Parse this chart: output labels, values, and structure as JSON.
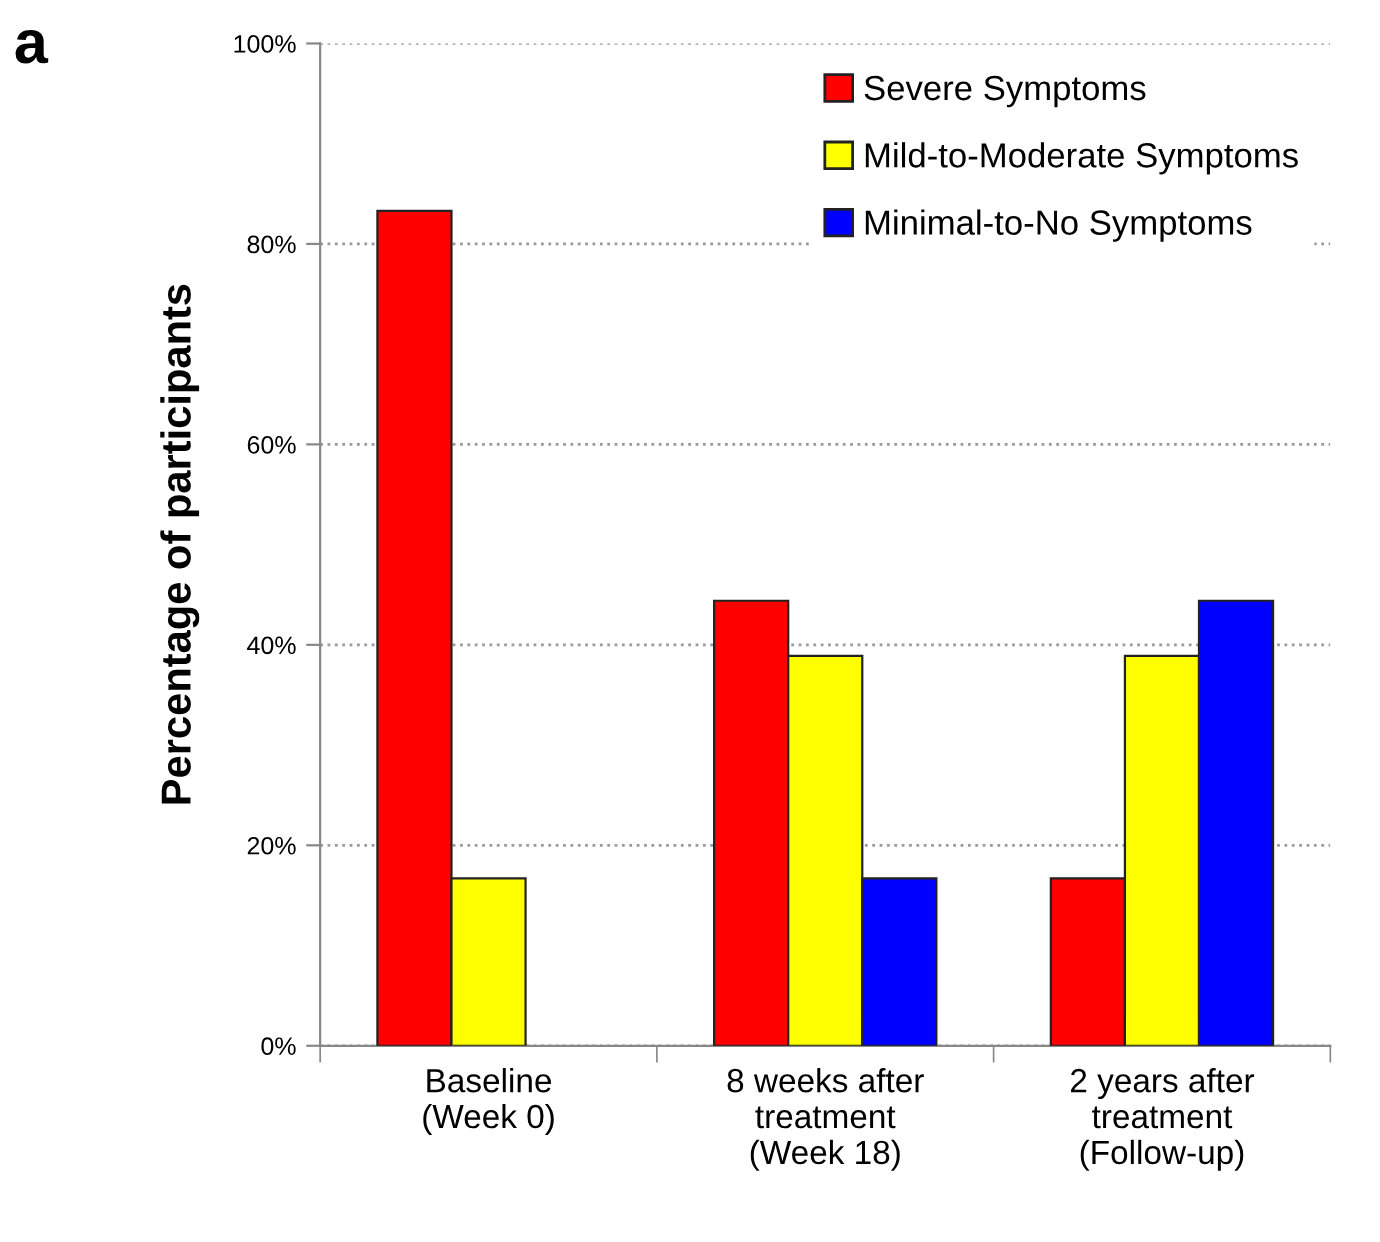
{
  "chart_data": {
    "type": "bar",
    "ylabel": "Percentage of participants",
    "categories": [
      "Baseline\n(Week 0)",
      "8 weeks after\ntreatment\n(Week 18)",
      "2 years after\ntreatment\n(Follow-up)"
    ],
    "series": [
      {
        "name": "Severe Symptoms",
        "color": "#ff0000",
        "values": [
          83.3,
          44.4,
          16.7
        ]
      },
      {
        "name": "Mild-to-Moderate Symptoms",
        "color": "#ffff00",
        "values": [
          16.7,
          38.9,
          38.9
        ]
      },
      {
        "name": "Minimal-to-No Symptoms",
        "color": "#0000ff",
        "values": [
          null,
          16.7,
          44.4
        ]
      }
    ],
    "ylim": [
      0,
      100
    ],
    "yticks": [
      {
        "value": 0,
        "label": "0%"
      },
      {
        "value": 20,
        "label": "20%"
      },
      {
        "value": 40,
        "label": "40%"
      },
      {
        "value": 60,
        "label": "60%"
      },
      {
        "value": 80,
        "label": "80%"
      },
      {
        "value": 100,
        "label": "100%"
      }
    ],
    "grid": "y",
    "legend": "top right",
    "annotations": [
      "a"
    ]
  }
}
